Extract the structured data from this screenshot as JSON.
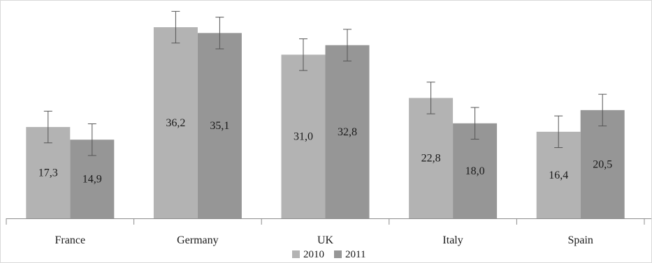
{
  "chart_data": {
    "type": "bar",
    "categories": [
      "France",
      "Germany",
      "UK",
      "Italy",
      "Spain"
    ],
    "series": [
      {
        "name": "2010",
        "color": "#b3b3b3",
        "values": [
          17.3,
          36.2,
          31.0,
          22.8,
          16.4
        ],
        "labels": [
          "17,3",
          "36,2",
          "31,0",
          "22,8",
          "16,4"
        ]
      },
      {
        "name": "2011",
        "color": "#969696",
        "values": [
          14.9,
          35.1,
          32.8,
          18.0,
          20.5
        ],
        "labels": [
          "14,9",
          "35,1",
          "32,8",
          "18,0",
          "20,5"
        ]
      }
    ],
    "error_bar": 3.0,
    "ylim": [
      0,
      40
    ],
    "y_axis_visible": false,
    "grid": false,
    "legend_position": "bottom",
    "title": "",
    "xlabel": "",
    "ylabel": ""
  }
}
